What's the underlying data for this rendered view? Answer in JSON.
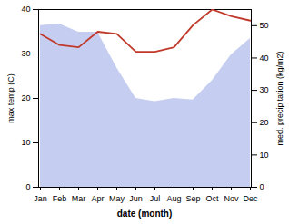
{
  "chart_data": {
    "type": "line",
    "categories": [
      "Jan",
      "Feb",
      "Mar",
      "Apr",
      "May",
      "Jun",
      "Jul",
      "Aug",
      "Sep",
      "Oct",
      "Nov",
      "Dec"
    ],
    "series": [
      {
        "type": "area",
        "color": "#c5cdf0",
        "axis": "y2",
        "values": [
          50.0,
          50.5,
          48.0,
          48.0,
          37.0,
          27.5,
          26.5,
          27.5,
          27.0,
          33.0,
          41.0,
          46.0
        ]
      },
      {
        "type": "line",
        "color": "#c0392b",
        "axis": "y",
        "values": [
          34.5,
          32.0,
          31.5,
          35.0,
          34.5,
          30.5,
          30.5,
          31.5,
          36.5,
          40.0,
          38.5,
          37.5
        ]
      }
    ],
    "x_label": "date (month)",
    "y_label": "max temp (C)",
    "y2_label": "med. precipitation (kg/m2)",
    "ylim": [
      0,
      40
    ],
    "yticks": [
      0,
      10,
      20,
      30,
      40
    ],
    "y2lim": [
      0,
      55
    ],
    "y2ticks": [
      0,
      10,
      20,
      30,
      40,
      50
    ],
    "grid": false
  }
}
